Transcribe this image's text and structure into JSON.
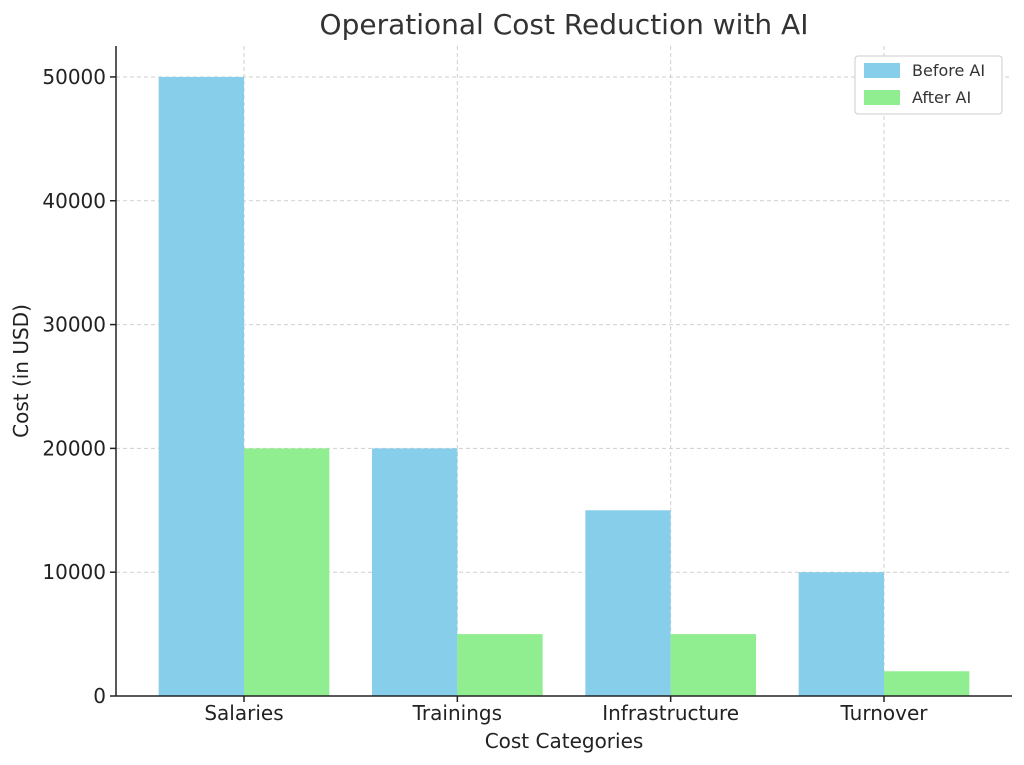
{
  "chart_data": {
    "type": "bar",
    "title": "Operational Cost Reduction with AI",
    "xlabel": "Cost Categories",
    "ylabel": "Cost (in USD)",
    "categories": [
      "Salaries",
      "Trainings",
      "Infrastructure",
      "Turnover"
    ],
    "series": [
      {
        "name": "Before AI",
        "values": [
          50000,
          20000,
          15000,
          10000
        ],
        "color": "#87CEEB"
      },
      {
        "name": "After AI",
        "values": [
          20000,
          5000,
          5000,
          2000
        ],
        "color": "#90EE90"
      }
    ],
    "yticks": [
      0,
      10000,
      20000,
      30000,
      40000,
      50000
    ],
    "ylim": [
      0,
      52500
    ],
    "grid": true,
    "legend_position": "top-right"
  }
}
